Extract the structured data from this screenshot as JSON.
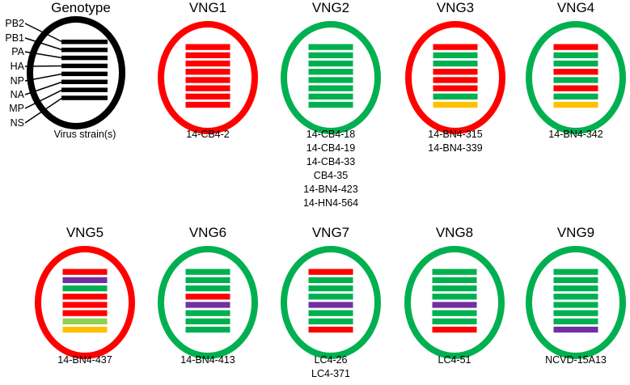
{
  "colors": {
    "red": "#ff0000",
    "green": "#00b050",
    "purple": "#7030a0",
    "yellow": "#ffc000",
    "lightgreen": "#92d050",
    "black": "#000000"
  },
  "legend": {
    "title": "Genotype",
    "segments": [
      "PB2",
      "PB1",
      "PA",
      "HA",
      "NP",
      "NA",
      "MP",
      "NS"
    ],
    "footer": "Virus strain(s)"
  },
  "genotypes": [
    {
      "name": "VNG1",
      "ring": "red",
      "segments": [
        "red",
        "red",
        "red",
        "red",
        "red",
        "red",
        "red",
        "red"
      ],
      "strains": [
        "14-CB4-2"
      ]
    },
    {
      "name": "VNG2",
      "ring": "green",
      "segments": [
        "green",
        "green",
        "green",
        "green",
        "green",
        "green",
        "green",
        "green"
      ],
      "strains": [
        "14-CB4-18",
        "14-CB4-19",
        "14-CB4-33",
        "CB4-35",
        "14-BN4-423",
        "14-HN4-564"
      ]
    },
    {
      "name": "VNG3",
      "ring": "red",
      "segments": [
        "red",
        "green",
        "green",
        "red",
        "red",
        "red",
        "green",
        "yellow"
      ],
      "strains": [
        "14-BN4-315",
        "14-BN4-339"
      ]
    },
    {
      "name": "VNG4",
      "ring": "green",
      "segments": [
        "red",
        "green",
        "green",
        "red",
        "green",
        "red",
        "green",
        "yellow"
      ],
      "strains": [
        "14-BN4-342"
      ]
    },
    {
      "name": "VNG5",
      "ring": "red",
      "segments": [
        "red",
        "purple",
        "green",
        "red",
        "red",
        "red",
        "lightgreen",
        "yellow"
      ],
      "strains": [
        "14-BN4-437"
      ]
    },
    {
      "name": "VNG6",
      "ring": "green",
      "segments": [
        "green",
        "green",
        "green",
        "red",
        "purple",
        "green",
        "green",
        "green"
      ],
      "strains": [
        "14-BN4-413"
      ]
    },
    {
      "name": "VNG7",
      "ring": "green",
      "segments": [
        "red",
        "green",
        "green",
        "green",
        "purple",
        "green",
        "green",
        "red"
      ],
      "strains": [
        "LC4-26",
        "LC4-371"
      ]
    },
    {
      "name": "VNG8",
      "ring": "green",
      "segments": [
        "green",
        "green",
        "green",
        "green",
        "purple",
        "green",
        "green",
        "red"
      ],
      "strains": [
        "LC4-51"
      ]
    },
    {
      "name": "VNG9",
      "ring": "green",
      "segments": [
        "green",
        "green",
        "green",
        "green",
        "green",
        "green",
        "green",
        "purple"
      ],
      "strains": [
        "NCVD-15A13"
      ]
    }
  ]
}
